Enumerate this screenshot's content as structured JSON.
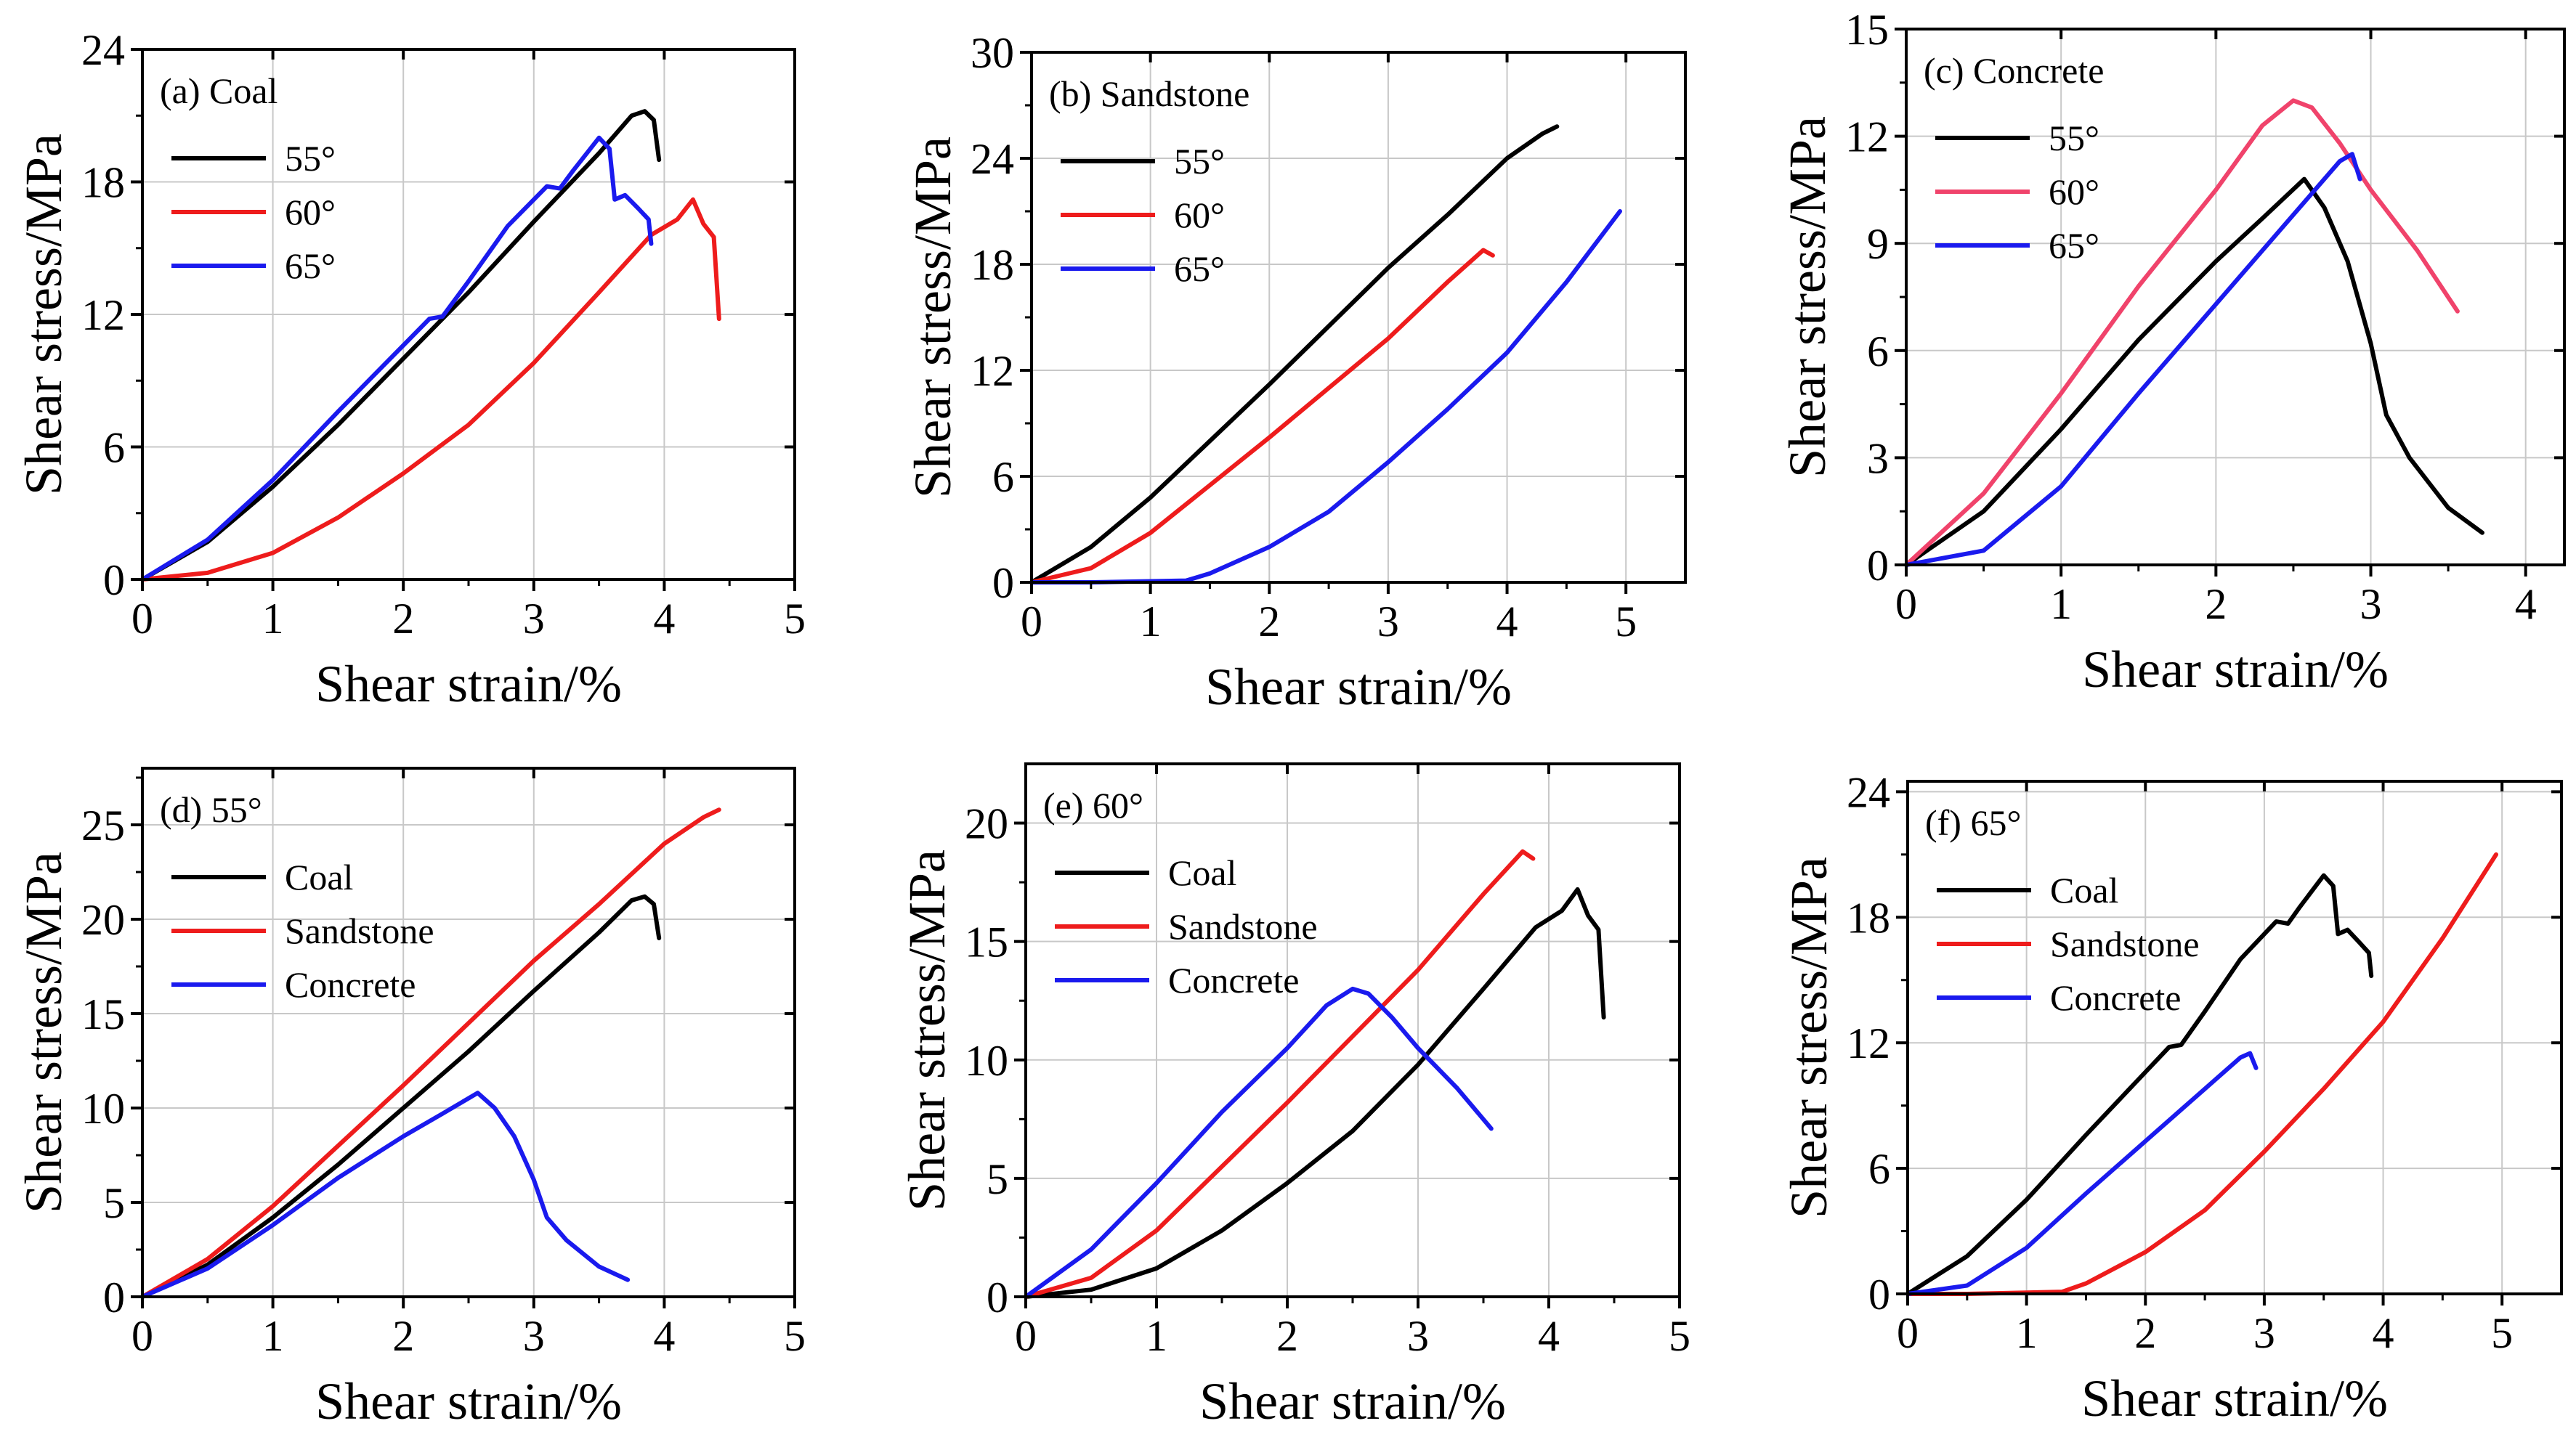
{
  "figure": {
    "colors": {
      "black": "#000000",
      "red": "#ee1c1c",
      "blue": "#1a1aee",
      "pink": "#f0436b"
    }
  },
  "chart_data": [
    {
      "type": "line",
      "title": "(a) Coal",
      "xlabel": "Shear strain/%",
      "ylabel": "Shear stress/MPa",
      "xlim": [
        0,
        5
      ],
      "ylim": [
        0,
        24
      ],
      "xticks": [
        0,
        1,
        2,
        3,
        4,
        5
      ],
      "yticks": [
        0,
        6,
        12,
        18,
        24
      ],
      "grid": true,
      "legend": "top-left",
      "series": [
        {
          "name": "55°",
          "color": "#000000",
          "points": [
            [
              0,
              0
            ],
            [
              0.5,
              1.7
            ],
            [
              1,
              4.2
            ],
            [
              1.5,
              7.0
            ],
            [
              2,
              10.0
            ],
            [
              2.5,
              13.0
            ],
            [
              3,
              16.2
            ],
            [
              3.5,
              19.3
            ],
            [
              3.75,
              21.0
            ],
            [
              3.85,
              21.2
            ],
            [
              3.92,
              20.8
            ],
            [
              3.96,
              19.0
            ]
          ]
        },
        {
          "name": "60°",
          "color": "#ee1c1c",
          "points": [
            [
              0,
              0
            ],
            [
              0.5,
              0.3
            ],
            [
              1,
              1.2
            ],
            [
              1.5,
              2.8
            ],
            [
              2,
              4.8
            ],
            [
              2.5,
              7.0
            ],
            [
              3,
              9.8
            ],
            [
              3.5,
              13.0
            ],
            [
              3.9,
              15.6
            ],
            [
              4.1,
              16.3
            ],
            [
              4.22,
              17.2
            ],
            [
              4.3,
              16.1
            ],
            [
              4.38,
              15.5
            ],
            [
              4.42,
              11.8
            ]
          ]
        },
        {
          "name": "65°",
          "color": "#1a1aee",
          "points": [
            [
              0,
              0
            ],
            [
              0.5,
              1.8
            ],
            [
              1,
              4.5
            ],
            [
              1.5,
              7.6
            ],
            [
              2,
              10.6
            ],
            [
              2.2,
              11.8
            ],
            [
              2.3,
              11.9
            ],
            [
              2.5,
              13.5
            ],
            [
              2.8,
              16.0
            ],
            [
              3.1,
              17.8
            ],
            [
              3.2,
              17.7
            ],
            [
              3.3,
              18.5
            ],
            [
              3.5,
              20.0
            ],
            [
              3.58,
              19.5
            ],
            [
              3.62,
              17.2
            ],
            [
              3.7,
              17.4
            ],
            [
              3.8,
              16.8
            ],
            [
              3.88,
              16.3
            ],
            [
              3.9,
              15.2
            ]
          ]
        }
      ]
    },
    {
      "type": "line",
      "title": "(b) Sandstone",
      "xlabel": "Shear strain/%",
      "ylabel": "Shear stress/MPa",
      "xlim": [
        0,
        5.5
      ],
      "ylim": [
        0,
        30
      ],
      "xticks": [
        0,
        1,
        2,
        3,
        4,
        5
      ],
      "yticks": [
        0,
        6,
        12,
        18,
        24,
        30
      ],
      "grid": true,
      "legend": "top-left",
      "series": [
        {
          "name": "55°",
          "color": "#000000",
          "points": [
            [
              0,
              0
            ],
            [
              0.5,
              2.0
            ],
            [
              1,
              4.8
            ],
            [
              1.5,
              8.0
            ],
            [
              2,
              11.2
            ],
            [
              2.5,
              14.5
            ],
            [
              3,
              17.8
            ],
            [
              3.5,
              20.8
            ],
            [
              4,
              24.0
            ],
            [
              4.3,
              25.4
            ],
            [
              4.42,
              25.8
            ]
          ]
        },
        {
          "name": "60°",
          "color": "#ee1c1c",
          "points": [
            [
              0,
              0
            ],
            [
              0.5,
              0.8
            ],
            [
              1,
              2.8
            ],
            [
              1.5,
              5.5
            ],
            [
              2,
              8.2
            ],
            [
              2.5,
              11.0
            ],
            [
              3,
              13.8
            ],
            [
              3.5,
              17.0
            ],
            [
              3.8,
              18.8
            ],
            [
              3.88,
              18.5
            ]
          ]
        },
        {
          "name": "65°",
          "color": "#1a1aee",
          "points": [
            [
              0,
              0
            ],
            [
              0.5,
              0
            ],
            [
              1.3,
              0.1
            ],
            [
              1.5,
              0.5
            ],
            [
              2,
              2.0
            ],
            [
              2.5,
              4.0
            ],
            [
              3,
              6.8
            ],
            [
              3.5,
              9.8
            ],
            [
              4,
              13.0
            ],
            [
              4.5,
              17.0
            ],
            [
              4.95,
              21.0
            ]
          ]
        }
      ]
    },
    {
      "type": "line",
      "title": "(c) Concrete",
      "xlabel": "Shear strain/%",
      "ylabel": "Shear stress/MPa",
      "xlim": [
        0,
        4.25
      ],
      "ylim": [
        0,
        15
      ],
      "xticks": [
        0,
        1,
        2,
        3,
        4
      ],
      "yticks": [
        0,
        3,
        6,
        9,
        12,
        15
      ],
      "grid": true,
      "legend": "top-left",
      "series": [
        {
          "name": "55°",
          "color": "#000000",
          "points": [
            [
              0,
              0
            ],
            [
              0.5,
              1.5
            ],
            [
              1,
              3.8
            ],
            [
              1.5,
              6.3
            ],
            [
              2,
              8.5
            ],
            [
              2.3,
              9.7
            ],
            [
              2.57,
              10.8
            ],
            [
              2.7,
              10.0
            ],
            [
              2.85,
              8.5
            ],
            [
              3,
              6.2
            ],
            [
              3.1,
              4.2
            ],
            [
              3.25,
              3.0
            ],
            [
              3.5,
              1.6
            ],
            [
              3.72,
              0.9
            ]
          ]
        },
        {
          "name": "60°",
          "color": "#f0436b",
          "points": [
            [
              0,
              0
            ],
            [
              0.5,
              2.0
            ],
            [
              1,
              4.8
            ],
            [
              1.5,
              7.8
            ],
            [
              2,
              10.5
            ],
            [
              2.3,
              12.3
            ],
            [
              2.5,
              13.0
            ],
            [
              2.62,
              12.8
            ],
            [
              2.8,
              11.8
            ],
            [
              3,
              10.5
            ],
            [
              3.3,
              8.8
            ],
            [
              3.56,
              7.1
            ]
          ]
        },
        {
          "name": "65°",
          "color": "#1a1aee",
          "points": [
            [
              0,
              0
            ],
            [
              0.5,
              0.4
            ],
            [
              1,
              2.2
            ],
            [
              1.5,
              4.8
            ],
            [
              2,
              7.3
            ],
            [
              2.5,
              9.8
            ],
            [
              2.8,
              11.3
            ],
            [
              2.88,
              11.5
            ],
            [
              2.93,
              10.8
            ]
          ]
        }
      ]
    },
    {
      "type": "line",
      "title": "(d)   55°",
      "xlabel": "Shear strain/%",
      "ylabel": "Shear stress/MPa",
      "xlim": [
        0,
        5
      ],
      "ylim": [
        0,
        28
      ],
      "xticks": [
        0,
        1,
        2,
        3,
        4,
        5
      ],
      "yticks": [
        0,
        5,
        10,
        15,
        20,
        25
      ],
      "grid": true,
      "legend": "top-left",
      "series": [
        {
          "name": "Coal",
          "color": "#000000",
          "points": [
            [
              0,
              0
            ],
            [
              0.5,
              1.7
            ],
            [
              1,
              4.2
            ],
            [
              1.5,
              7.0
            ],
            [
              2,
              10.0
            ],
            [
              2.5,
              13.0
            ],
            [
              3,
              16.2
            ],
            [
              3.5,
              19.3
            ],
            [
              3.75,
              21.0
            ],
            [
              3.85,
              21.2
            ],
            [
              3.92,
              20.8
            ],
            [
              3.96,
              19.0
            ]
          ]
        },
        {
          "name": " Sandstone",
          "color": "#ee1c1c",
          "points": [
            [
              0,
              0
            ],
            [
              0.5,
              2.0
            ],
            [
              1,
              4.8
            ],
            [
              1.5,
              8.0
            ],
            [
              2,
              11.2
            ],
            [
              2.5,
              14.5
            ],
            [
              3,
              17.8
            ],
            [
              3.5,
              20.8
            ],
            [
              4,
              24.0
            ],
            [
              4.3,
              25.4
            ],
            [
              4.42,
              25.8
            ]
          ]
        },
        {
          "name": "Concrete",
          "color": "#1a1aee",
          "points": [
            [
              0,
              0
            ],
            [
              0.5,
              1.5
            ],
            [
              1,
              3.8
            ],
            [
              1.5,
              6.3
            ],
            [
              2,
              8.5
            ],
            [
              2.3,
              9.7
            ],
            [
              2.57,
              10.8
            ],
            [
              2.7,
              10.0
            ],
            [
              2.85,
              8.5
            ],
            [
              3,
              6.2
            ],
            [
              3.1,
              4.2
            ],
            [
              3.25,
              3.0
            ],
            [
              3.5,
              1.6
            ],
            [
              3.72,
              0.9
            ]
          ]
        }
      ]
    },
    {
      "type": "line",
      "title": "(e)   60°",
      "xlabel": "Shear strain/%",
      "ylabel": "Shear stress/MPa",
      "xlim": [
        0,
        5
      ],
      "ylim": [
        0,
        22.5
      ],
      "xticks": [
        0,
        1,
        2,
        3,
        4,
        5
      ],
      "yticks": [
        0,
        5,
        10,
        15,
        20
      ],
      "grid": true,
      "legend": "top-left",
      "series": [
        {
          "name": "Coal",
          "color": "#000000",
          "points": [
            [
              0,
              0
            ],
            [
              0.5,
              0.3
            ],
            [
              1,
              1.2
            ],
            [
              1.5,
              2.8
            ],
            [
              2,
              4.8
            ],
            [
              2.5,
              7.0
            ],
            [
              3,
              9.8
            ],
            [
              3.5,
              13.0
            ],
            [
              3.9,
              15.6
            ],
            [
              4.1,
              16.3
            ],
            [
              4.22,
              17.2
            ],
            [
              4.3,
              16.1
            ],
            [
              4.38,
              15.5
            ],
            [
              4.42,
              11.8
            ]
          ]
        },
        {
          "name": "Sandstone",
          "color": "#ee1c1c",
          "points": [
            [
              0,
              0
            ],
            [
              0.5,
              0.8
            ],
            [
              1,
              2.8
            ],
            [
              1.5,
              5.5
            ],
            [
              2,
              8.2
            ],
            [
              2.5,
              11.0
            ],
            [
              3,
              13.8
            ],
            [
              3.5,
              17.0
            ],
            [
              3.8,
              18.8
            ],
            [
              3.88,
              18.5
            ]
          ]
        },
        {
          "name": "Concrete",
          "color": "#1a1aee",
          "points": [
            [
              0,
              0
            ],
            [
              0.5,
              2.0
            ],
            [
              1,
              4.8
            ],
            [
              1.5,
              7.8
            ],
            [
              2,
              10.5
            ],
            [
              2.3,
              12.3
            ],
            [
              2.5,
              13.0
            ],
            [
              2.62,
              12.8
            ],
            [
              2.8,
              11.8
            ],
            [
              3,
              10.5
            ],
            [
              3.3,
              8.8
            ],
            [
              3.56,
              7.1
            ]
          ]
        }
      ]
    },
    {
      "type": "line",
      "title": "(f)   65°",
      "xlabel": "Shear strain/%",
      "ylabel": "Shear stress/MPa",
      "xlim": [
        0,
        5.5
      ],
      "ylim": [
        0,
        24.5
      ],
      "xticks": [
        0,
        1,
        2,
        3,
        4,
        5
      ],
      "yticks": [
        0,
        6,
        12,
        18,
        24
      ],
      "grid": true,
      "legend": "top-left",
      "series": [
        {
          "name": "Coal",
          "color": "#000000",
          "points": [
            [
              0,
              0
            ],
            [
              0.5,
              1.8
            ],
            [
              1,
              4.5
            ],
            [
              1.5,
              7.6
            ],
            [
              2,
              10.6
            ],
            [
              2.2,
              11.8
            ],
            [
              2.3,
              11.9
            ],
            [
              2.5,
              13.5
            ],
            [
              2.8,
              16.0
            ],
            [
              3.1,
              17.8
            ],
            [
              3.2,
              17.7
            ],
            [
              3.3,
              18.5
            ],
            [
              3.5,
              20.0
            ],
            [
              3.58,
              19.5
            ],
            [
              3.62,
              17.2
            ],
            [
              3.7,
              17.4
            ],
            [
              3.8,
              16.8
            ],
            [
              3.88,
              16.3
            ],
            [
              3.9,
              15.2
            ]
          ]
        },
        {
          "name": "Sandstone",
          "color": "#ee1c1c",
          "points": [
            [
              0,
              0
            ],
            [
              0.5,
              0
            ],
            [
              1.3,
              0.1
            ],
            [
              1.5,
              0.5
            ],
            [
              2,
              2.0
            ],
            [
              2.5,
              4.0
            ],
            [
              3,
              6.8
            ],
            [
              3.5,
              9.8
            ],
            [
              4,
              13.0
            ],
            [
              4.5,
              17.0
            ],
            [
              4.95,
              21.0
            ]
          ]
        },
        {
          "name": "Concrete",
          "color": "#1a1aee",
          "points": [
            [
              0,
              0
            ],
            [
              0.5,
              0.4
            ],
            [
              1,
              2.2
            ],
            [
              1.5,
              4.8
            ],
            [
              2,
              7.3
            ],
            [
              2.5,
              9.8
            ],
            [
              2.8,
              11.3
            ],
            [
              2.88,
              11.5
            ],
            [
              2.93,
              10.8
            ]
          ]
        }
      ]
    }
  ]
}
